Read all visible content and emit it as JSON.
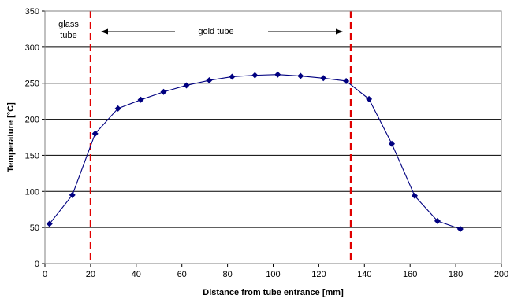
{
  "chart_data": {
    "type": "line",
    "title": "",
    "xlabel": "Distance from tube entrance [mm]",
    "ylabel": "Temperature [°C]",
    "xlim": [
      0,
      200
    ],
    "ylim": [
      0,
      350
    ],
    "xticks": [
      0,
      20,
      40,
      60,
      80,
      100,
      120,
      140,
      160,
      180,
      200
    ],
    "yticks": [
      0,
      50,
      100,
      150,
      200,
      250,
      300,
      350
    ],
    "grid": "horizontal",
    "legend": "none",
    "series": [
      {
        "color": "#000080",
        "marker": "diamond",
        "x": [
          2,
          12,
          22,
          32,
          42,
          52,
          62,
          72,
          82,
          92,
          102,
          112,
          122,
          132,
          142,
          152,
          162,
          172,
          182
        ],
        "y": [
          55,
          95,
          180,
          215,
          227,
          238,
          247,
          254,
          259,
          261,
          262,
          260,
          257,
          253,
          228,
          166,
          94,
          59,
          48
        ]
      }
    ],
    "reference_lines": [
      {
        "orientation": "vertical",
        "x": 20,
        "color": "#e00000",
        "style": "dashed"
      },
      {
        "orientation": "vertical",
        "x": 134,
        "color": "#e00000",
        "style": "dashed"
      }
    ],
    "annotations": {
      "glass_line1": "glass",
      "glass_line2": "tube",
      "gold": "gold tube"
    }
  }
}
